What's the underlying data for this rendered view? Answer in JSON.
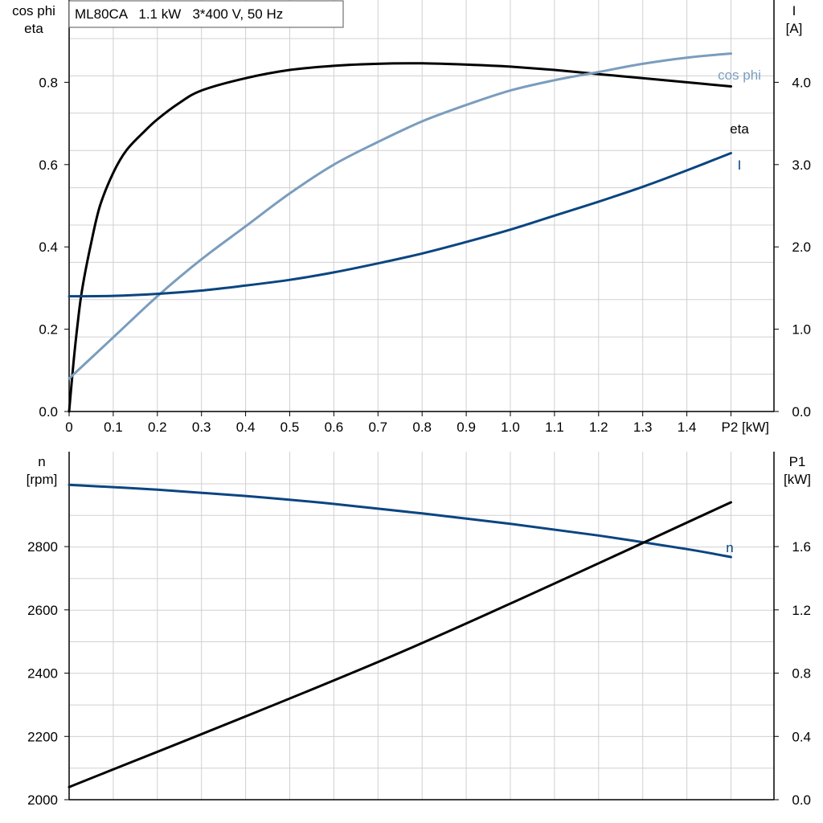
{
  "title_box": "ML80CA   1.1 kW   3*400 V, 50 Hz",
  "colors": {
    "eta": "#000000",
    "cos_phi": "#7a9dbd",
    "I": "#0b4580",
    "n": "#0b4580",
    "P1": "#000000",
    "grid": "#d0d0d0"
  },
  "chart_data": [
    {
      "type": "line",
      "x_ticks": [
        "0",
        "0.1",
        "0.2",
        "0.3",
        "0.4",
        "0.5",
        "0.6",
        "0.7",
        "0.8",
        "0.9",
        "1.0",
        "1.1",
        "1.2",
        "1.3",
        "1.4",
        "P2 [kW]"
      ],
      "xlim": [
        0,
        1.6
      ],
      "y_left": {
        "label_lines": [
          "cos phi",
          "eta"
        ],
        "ticks": [
          "0.0",
          "0.2",
          "0.4",
          "0.6",
          "0.8"
        ],
        "ylim": [
          0,
          1.0
        ]
      },
      "y_right": {
        "label_lines": [
          "I",
          "[A]"
        ],
        "ticks": [
          "0.0",
          "1.0",
          "2.0",
          "3.0",
          "4.0"
        ],
        "ylim": [
          0,
          5.0
        ]
      },
      "grid": true,
      "series": [
        {
          "name": "eta",
          "axis": "left",
          "x": [
            0,
            0.01,
            0.02,
            0.03,
            0.05,
            0.07,
            0.1,
            0.13,
            0.17,
            0.2,
            0.25,
            0.3,
            0.4,
            0.5,
            0.6,
            0.7,
            0.8,
            0.9,
            1.0,
            1.1,
            1.2,
            1.3,
            1.4,
            1.5
          ],
          "y": [
            0,
            0.12,
            0.22,
            0.3,
            0.41,
            0.5,
            0.58,
            0.635,
            0.68,
            0.71,
            0.75,
            0.78,
            0.81,
            0.83,
            0.84,
            0.845,
            0.846,
            0.843,
            0.838,
            0.83,
            0.82,
            0.81,
            0.8,
            0.79
          ]
        },
        {
          "name": "cos phi",
          "axis": "left",
          "x": [
            0,
            0.1,
            0.2,
            0.3,
            0.4,
            0.5,
            0.6,
            0.7,
            0.8,
            0.9,
            1.0,
            1.1,
            1.2,
            1.3,
            1.4,
            1.5
          ],
          "y": [
            0.08,
            0.18,
            0.28,
            0.37,
            0.45,
            0.53,
            0.6,
            0.655,
            0.705,
            0.745,
            0.78,
            0.805,
            0.825,
            0.845,
            0.86,
            0.87
          ]
        },
        {
          "name": "I",
          "axis": "right",
          "x": [
            0,
            0.1,
            0.2,
            0.3,
            0.4,
            0.5,
            0.6,
            0.7,
            0.8,
            0.9,
            1.0,
            1.1,
            1.2,
            1.3,
            1.4,
            1.5
          ],
          "y": [
            1.4,
            1.405,
            1.43,
            1.47,
            1.53,
            1.6,
            1.69,
            1.8,
            1.92,
            2.06,
            2.21,
            2.38,
            2.55,
            2.73,
            2.93,
            3.14
          ]
        }
      ]
    },
    {
      "type": "line",
      "x_ticks": [],
      "xlim": [
        0,
        1.6
      ],
      "y_left": {
        "label_lines": [
          "n",
          "[rpm]"
        ],
        "ticks": [
          "2000",
          "2200",
          "2400",
          "2600",
          "2800"
        ],
        "ylim": [
          2000,
          3100
        ]
      },
      "y_right": {
        "label_lines": [
          "P1",
          "[kW]"
        ],
        "ticks": [
          "0.0",
          "0.4",
          "0.8",
          "1.2",
          "1.6"
        ],
        "ylim": [
          0,
          2.2
        ]
      },
      "grid": true,
      "series": [
        {
          "name": "n",
          "axis": "left",
          "x": [
            0,
            0.2,
            0.4,
            0.6,
            0.8,
            1.0,
            1.2,
            1.4,
            1.5
          ],
          "y": [
            2995,
            2980,
            2960,
            2935,
            2905,
            2872,
            2835,
            2792,
            2767
          ]
        },
        {
          "name": "",
          "axis": "right",
          "x": [
            0,
            0.75,
            1.5
          ],
          "y": [
            0.08,
            0.93,
            1.88
          ]
        }
      ]
    }
  ]
}
